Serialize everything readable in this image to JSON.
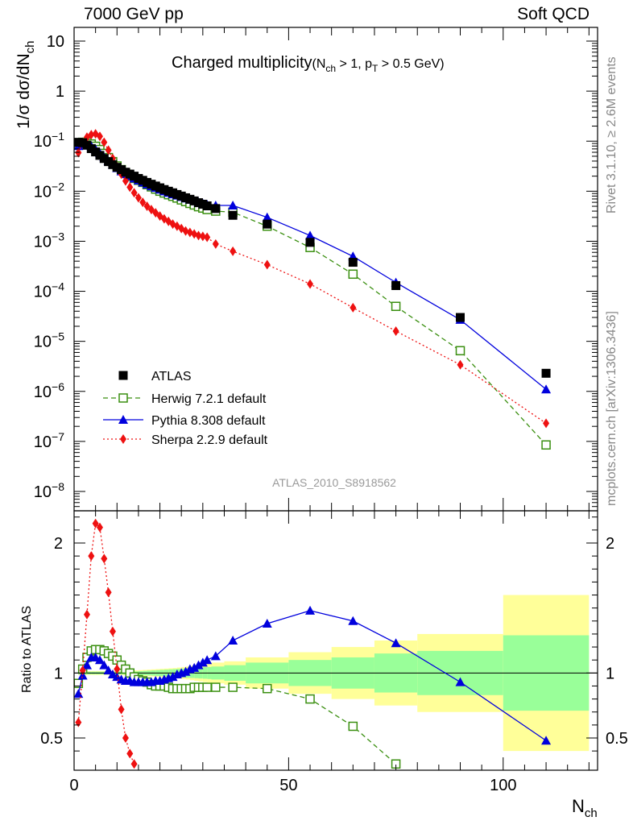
{
  "header": {
    "left": "7000 GeV pp",
    "right": "Soft QCD"
  },
  "side_labels": {
    "rivet": "Rivet 3.1.10, ≥ 2.6M events",
    "mcplots": "mcplots.cern.ch [arXiv:1306.3436]"
  },
  "chart_data": [
    {
      "type": "scatter",
      "panel": "main",
      "title": "Charged multiplicity",
      "title_sub": "(N_ch > 1, p_T > 0.5 GeV)",
      "analysis": "ATLAS_2010_S8918562",
      "ylabel": "1/σ dσ/dN_ch",
      "xlabel": "N_ch",
      "yscale": "log",
      "xlim": [
        0,
        122
      ],
      "ylim": [
        3e-09,
        20
      ],
      "y_ticks": [
        "10^-8",
        "10^-7",
        "10^-6",
        "10^-5",
        "10^-4",
        "10^-3",
        "10^-2",
        "10^-1",
        "1",
        "10"
      ],
      "legend_position": "bottom-left",
      "grid": false,
      "series": [
        {
          "name": "ATLAS",
          "color": "#000000",
          "marker": "square",
          "x": [
            1,
            2,
            3,
            4,
            5,
            6,
            7,
            8,
            9,
            10,
            11,
            12,
            13,
            14,
            15,
            16,
            17,
            18,
            19,
            20,
            21,
            22,
            23,
            24,
            25,
            26,
            27,
            28,
            29,
            30,
            31,
            33,
            37,
            45,
            55,
            65,
            75,
            90,
            110
          ],
          "y": [
            0.095,
            0.093,
            0.083,
            0.071,
            0.061,
            0.052,
            0.045,
            0.039,
            0.034,
            0.03,
            0.027,
            0.024,
            0.022,
            0.02,
            0.018,
            0.0165,
            0.015,
            0.0138,
            0.0127,
            0.0117,
            0.0108,
            0.01,
            0.0093,
            0.0086,
            0.008,
            0.0074,
            0.0069,
            0.0064,
            0.0059,
            0.0055,
            0.0051,
            0.0045,
            0.0033,
            0.0022,
            0.00095,
            0.00038,
            0.00013,
            3e-05,
            2.3e-06
          ]
        },
        {
          "name": "Herwig 7.2.1 default",
          "color": "#3a8f10",
          "marker": "open-square",
          "line": "dashed",
          "x": [
            1,
            2,
            3,
            4,
            5,
            6,
            7,
            8,
            9,
            10,
            11,
            12,
            13,
            14,
            15,
            16,
            17,
            18,
            19,
            20,
            21,
            22,
            23,
            24,
            25,
            26,
            27,
            28,
            29,
            30,
            31,
            33,
            37,
            45,
            55,
            65,
            75,
            90,
            110
          ],
          "y": [
            0.09,
            0.095,
            0.095,
            0.088,
            0.079,
            0.068,
            0.057,
            0.047,
            0.039,
            0.032,
            0.027,
            0.023,
            0.02,
            0.018,
            0.0165,
            0.015,
            0.0135,
            0.0122,
            0.011,
            0.01,
            0.0092,
            0.0085,
            0.0079,
            0.0073,
            0.0067,
            0.0062,
            0.0057,
            0.0053,
            0.0049,
            0.0046,
            0.0043,
            0.004,
            0.0038,
            0.002,
            0.00075,
            0.00022,
            5e-05,
            6.5e-06,
            8.5e-08
          ]
        },
        {
          "name": "Pythia 8.308 default",
          "color": "#0000dd",
          "marker": "triangle",
          "line": "solid",
          "x": [
            1,
            2,
            3,
            4,
            5,
            6,
            7,
            8,
            9,
            10,
            11,
            12,
            13,
            14,
            15,
            16,
            17,
            18,
            19,
            20,
            21,
            22,
            23,
            24,
            25,
            26,
            27,
            28,
            29,
            30,
            31,
            33,
            37,
            45,
            55,
            65,
            75,
            90,
            110
          ],
          "y": [
            0.08,
            0.09,
            0.088,
            0.08,
            0.069,
            0.058,
            0.048,
            0.04,
            0.034,
            0.029,
            0.025,
            0.022,
            0.02,
            0.018,
            0.0165,
            0.015,
            0.0137,
            0.0126,
            0.0117,
            0.0108,
            0.01,
            0.0093,
            0.0087,
            0.0082,
            0.0077,
            0.0072,
            0.0068,
            0.0064,
            0.006,
            0.0057,
            0.0054,
            0.0052,
            0.0052,
            0.003,
            0.0013,
            0.0005,
            0.00015,
            2.7e-05,
            1.1e-06
          ]
        },
        {
          "name": "Sherpa 2.2.9 default",
          "color": "#ee1111",
          "marker": "diamond",
          "line": "dotted",
          "x": [
            1,
            2,
            3,
            4,
            5,
            6,
            7,
            8,
            9,
            10,
            11,
            12,
            13,
            14,
            15,
            16,
            17,
            18,
            19,
            20,
            21,
            22,
            23,
            24,
            25,
            26,
            27,
            28,
            29,
            30,
            31,
            33,
            37,
            45,
            55,
            65,
            75,
            90,
            110
          ],
          "y": [
            0.059,
            0.095,
            0.12,
            0.135,
            0.14,
            0.125,
            0.095,
            0.066,
            0.045,
            0.031,
            0.022,
            0.016,
            0.012,
            0.0093,
            0.0074,
            0.006,
            0.005,
            0.0043,
            0.0037,
            0.0032,
            0.0028,
            0.0025,
            0.0022,
            0.002,
            0.0018,
            0.0016,
            0.0015,
            0.0014,
            0.0013,
            0.00125,
            0.0012,
            0.00088,
            0.00063,
            0.00034,
            0.00014,
            4.7e-05,
            1.6e-05,
            3.4e-06,
            2.3e-07
          ]
        }
      ]
    },
    {
      "type": "line",
      "panel": "ratio",
      "ylabel": "Ratio to ATLAS",
      "xlabel": "N_ch",
      "ylim": [
        0.35,
        2.3
      ],
      "xlim": [
        0,
        122
      ],
      "x_ticks": [
        "0",
        "50",
        "100"
      ],
      "y_ticks": [
        "0.5",
        "1",
        "2"
      ],
      "bands": {
        "edges": [
          1,
          2,
          3,
          4,
          5,
          6,
          7,
          8,
          9,
          10,
          11,
          12,
          13,
          14,
          15,
          16,
          17,
          18,
          19,
          20,
          21,
          22,
          23,
          24,
          25,
          26,
          27,
          28,
          29,
          30,
          31,
          32,
          35,
          40,
          50,
          60,
          70,
          80,
          100,
          120
        ],
        "inner_halfwidth": [
          0.01,
          0.01,
          0.01,
          0.01,
          0.01,
          0.01,
          0.01,
          0.01,
          0.01,
          0.01,
          0.01,
          0.01,
          0.01,
          0.012,
          0.014,
          0.016,
          0.018,
          0.02,
          0.022,
          0.024,
          0.026,
          0.028,
          0.03,
          0.032,
          0.034,
          0.036,
          0.038,
          0.04,
          0.042,
          0.044,
          0.046,
          0.05,
          0.06,
          0.08,
          0.1,
          0.12,
          0.15,
          0.17,
          0.29
        ],
        "outer_halfwidth": [
          0.015,
          0.015,
          0.015,
          0.015,
          0.015,
          0.015,
          0.015,
          0.015,
          0.015,
          0.015,
          0.016,
          0.017,
          0.018,
          0.02,
          0.022,
          0.024,
          0.026,
          0.028,
          0.03,
          0.032,
          0.034,
          0.036,
          0.038,
          0.042,
          0.046,
          0.05,
          0.055,
          0.06,
          0.065,
          0.07,
          0.075,
          0.08,
          0.09,
          0.12,
          0.16,
          0.2,
          0.25,
          0.3,
          0.6
        ],
        "inner_color": "#99ff99",
        "outer_color": "#ffff99"
      },
      "series": [
        {
          "name": "Herwig 7.2.1 default",
          "color": "#3a8f10",
          "x": [
            1,
            2,
            3,
            4,
            5,
            6,
            7,
            8,
            9,
            10,
            11,
            12,
            13,
            14,
            15,
            16,
            17,
            18,
            19,
            20,
            21,
            22,
            23,
            24,
            25,
            26,
            27,
            28,
            29,
            30,
            31,
            33,
            37,
            45,
            55,
            65,
            75
          ],
          "y": [
            0.92,
            1.03,
            1.12,
            1.17,
            1.18,
            1.18,
            1.17,
            1.15,
            1.13,
            1.1,
            1.06,
            1.03,
            1.0,
            0.97,
            0.95,
            0.94,
            0.93,
            0.91,
            0.9,
            0.9,
            0.9,
            0.89,
            0.88,
            0.88,
            0.88,
            0.88,
            0.88,
            0.89,
            0.89,
            0.89,
            0.89,
            0.89,
            0.89,
            0.88,
            0.8,
            0.59,
            0.3
          ]
        },
        {
          "name": "Pythia 8.308 default",
          "color": "#0000dd",
          "x": [
            1,
            2,
            3,
            4,
            5,
            6,
            7,
            8,
            9,
            10,
            11,
            12,
            13,
            14,
            15,
            16,
            17,
            18,
            19,
            20,
            21,
            22,
            23,
            24,
            25,
            26,
            27,
            28,
            29,
            30,
            31,
            33,
            37,
            45,
            55,
            65,
            75,
            90,
            110
          ],
          "y": [
            0.84,
            0.98,
            1.06,
            1.12,
            1.12,
            1.1,
            1.06,
            1.02,
            0.99,
            0.97,
            0.95,
            0.94,
            0.94,
            0.93,
            0.93,
            0.93,
            0.93,
            0.93,
            0.94,
            0.94,
            0.95,
            0.96,
            0.97,
            0.99,
            1.0,
            1.01,
            1.03,
            1.04,
            1.06,
            1.08,
            1.1,
            1.13,
            1.25,
            1.38,
            1.48,
            1.4,
            1.23,
            0.93,
            0.48
          ]
        },
        {
          "name": "Sherpa 2.2.9 default",
          "color": "#ee1111",
          "x": [
            1,
            2,
            3,
            4,
            5,
            6,
            7,
            8,
            9,
            10,
            11,
            12,
            13,
            14
          ],
          "y": [
            0.62,
            1.02,
            1.45,
            1.9,
            2.15,
            2.12,
            1.88,
            1.62,
            1.32,
            1.03,
            0.72,
            0.5,
            0.38,
            0.3
          ]
        }
      ]
    }
  ]
}
